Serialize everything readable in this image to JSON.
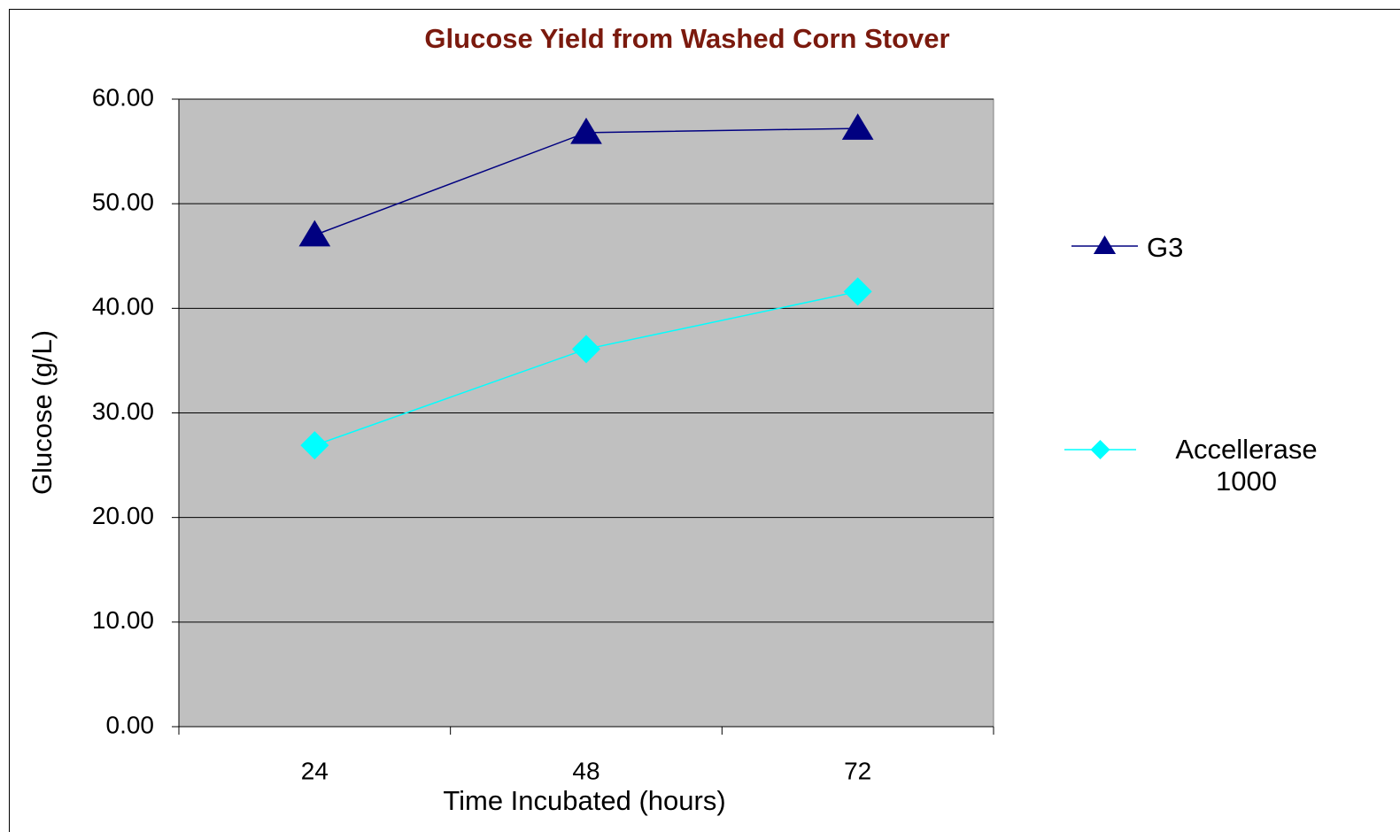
{
  "chart_data": {
    "type": "line",
    "title": "Glucose Yield from Washed Corn Stover",
    "x_label": "Time Incubated (hours)",
    "y_label": "Glucose (g/L)",
    "categories": [
      "24",
      "48",
      "72"
    ],
    "series": [
      {
        "name": "G3",
        "color": "#000080",
        "marker": "triangle",
        "values": [
          47.0,
          56.8,
          57.2
        ]
      },
      {
        "name": "Accellerase 1000",
        "color": "#00ffff",
        "marker": "diamond",
        "values": [
          26.9,
          36.1,
          41.6
        ]
      }
    ],
    "ylim": [
      0,
      60
    ],
    "yticks": [
      {
        "value": 0,
        "label": "0.00"
      },
      {
        "value": 10,
        "label": "10.00"
      },
      {
        "value": 20,
        "label": "20.00"
      },
      {
        "value": 30,
        "label": "30.00"
      },
      {
        "value": 40,
        "label": "40.00"
      },
      {
        "value": 50,
        "label": "50.00"
      },
      {
        "value": 60,
        "label": "60.00"
      }
    ],
    "grid": true,
    "plot_background": "#c0c0c0",
    "legend": "right"
  }
}
